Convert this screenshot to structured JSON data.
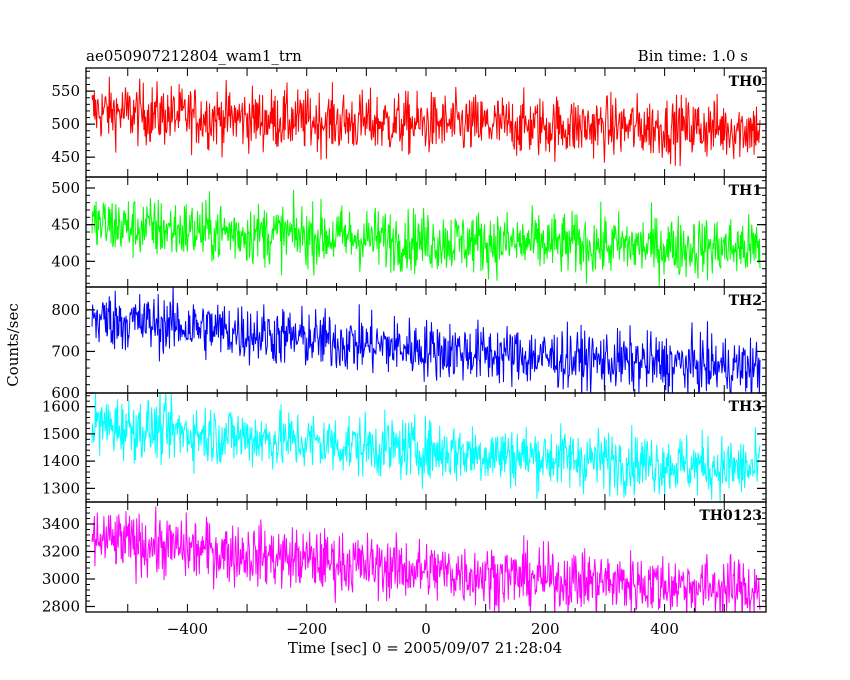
{
  "chart_data": {
    "type": "line",
    "title": "ae050907212804_wam1_trn",
    "bin_time": "Bin time: 1.0 s",
    "xlabel": "Time [sec] 0 = 2005/09/07 21:28:04",
    "ylabel": "Counts/sec",
    "xlim": [
      -570,
      570
    ],
    "xticks": [
      -400,
      -200,
      0,
      200,
      400
    ],
    "grid": false,
    "panels": [
      {
        "name": "TH0",
        "color": "#ff0000",
        "ylim": [
          420,
          585
        ],
        "yticks": [
          450,
          500,
          550
        ],
        "trend": {
          "x": [
            -560,
            -400,
            -200,
            0,
            200,
            400,
            560
          ],
          "y": [
            520,
            512,
            505,
            500,
            497,
            495,
            493
          ]
        }
      },
      {
        "name": "TH1",
        "color": "#00ff00",
        "ylim": [
          365,
          515
        ],
        "yticks": [
          400,
          450,
          500
        ],
        "trend": {
          "x": [
            -560,
            -400,
            -200,
            0,
            200,
            400,
            560
          ],
          "y": [
            450,
            442,
            435,
            428,
            424,
            420,
            418
          ]
        }
      },
      {
        "name": "TH2",
        "color": "#0000ff",
        "ylim": [
          600,
          855
        ],
        "yticks": [
          600,
          700,
          800
        ],
        "trend": {
          "x": [
            -560,
            -400,
            -200,
            0,
            200,
            400,
            560
          ],
          "y": [
            780,
            760,
            730,
            705,
            685,
            670,
            660
          ]
        }
      },
      {
        "name": "TH3",
        "color": "#00ffff",
        "ylim": [
          1250,
          1650
        ],
        "yticks": [
          1300,
          1400,
          1500,
          1600
        ],
        "trend": {
          "x": [
            -560,
            -400,
            -200,
            0,
            200,
            400,
            560
          ],
          "y": [
            1535,
            1505,
            1470,
            1440,
            1415,
            1390,
            1370
          ]
        }
      },
      {
        "name": "TH0123",
        "color": "#ff00ff",
        "ylim": [
          2760,
          3560
        ],
        "yticks": [
          2800,
          3000,
          3200,
          3400
        ],
        "trend": {
          "x": [
            -560,
            -400,
            -200,
            0,
            200,
            400,
            560
          ],
          "y": [
            3290,
            3220,
            3140,
            3060,
            3000,
            2960,
            2920
          ]
        }
      }
    ]
  }
}
